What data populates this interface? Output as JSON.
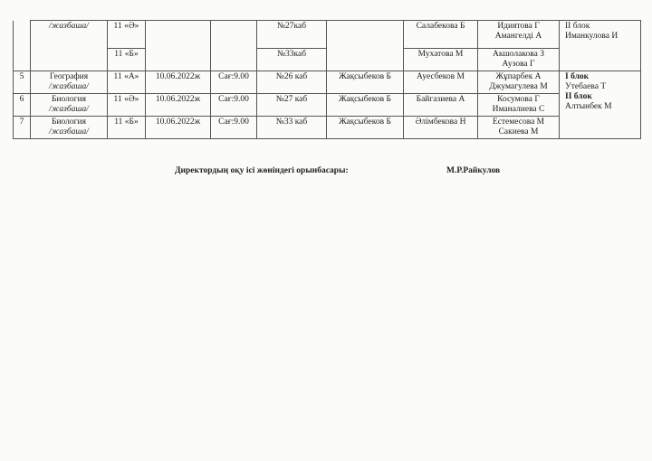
{
  "rows_top": [
    {
      "subject_note": "/жазбаша/",
      "class": "11 «Ә»",
      "room": "№27каб",
      "teacher": "Салабекова Б",
      "assistants": [
        "Идиятова Г",
        "Амангелді А"
      ]
    },
    {
      "class": "11 «Б»",
      "room": "№33каб",
      "teacher": "Мухатова М",
      "assistants": [
        "Акшолакова З",
        "Аузова Г"
      ]
    }
  ],
  "block_top": {
    "label": "II блок",
    "name": "Иманкулова И"
  },
  "rows": [
    {
      "num": "5",
      "subject": "География",
      "note": "/жазбаша/",
      "class": "11 «А»",
      "date": "10.06.2022ж",
      "time": "Сағ:9.00",
      "room": "№26 каб",
      "organizer": "Жақсыбеков Б",
      "teacher": "Ауесбеков М",
      "assistants": [
        "Жұпарбек А",
        "Джумагулева М"
      ]
    },
    {
      "num": "6",
      "subject": "Биология",
      "note": "/жазбаша/",
      "class": "11 «Ә»",
      "date": "10.06.2022ж",
      "time": "Сағ:9.00",
      "room": "№27 каб",
      "organizer": "Жақсыбеков Б",
      "teacher": "Байгазиева А",
      "assistants": [
        "Косумова Г",
        "Иманалиева С"
      ]
    },
    {
      "num": "7",
      "subject": "Биология",
      "note": "/жазбаша/",
      "class": "11 «Б»",
      "date": "10.06.2022ж",
      "time": "Сағ:9.00",
      "room": "№33 каб",
      "organizer": "Жақсыбеков Б",
      "teacher": "Әлімбекова Н",
      "assistants": [
        "Естемесова М",
        "Сакиева М"
      ]
    }
  ],
  "block_bottom": {
    "label1": "I блок",
    "name1": "Утебаева Т",
    "label2": "II блок",
    "name2": "Алтынбек М"
  },
  "signature": {
    "position": "Директордың оқу ісі жөніндегі орынбасары:",
    "name": "М.Р.Райкулов"
  }
}
